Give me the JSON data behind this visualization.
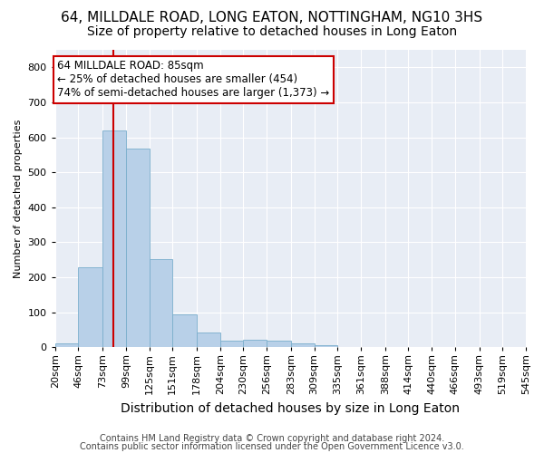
{
  "title": "64, MILLDALE ROAD, LONG EATON, NOTTINGHAM, NG10 3HS",
  "subtitle": "Size of property relative to detached houses in Long Eaton",
  "xlabel": "Distribution of detached houses by size in Long Eaton",
  "ylabel": "Number of detached properties",
  "footnote1": "Contains HM Land Registry data © Crown copyright and database right 2024.",
  "footnote2": "Contains public sector information licensed under the Open Government Licence v3.0.",
  "annotation_line1": "64 MILLDALE ROAD: 85sqm",
  "annotation_line2": "← 25% of detached houses are smaller (454)",
  "annotation_line3": "74% of semi-detached houses are larger (1,373) →",
  "bar_edges": [
    20,
    46,
    73,
    99,
    125,
    151,
    178,
    204,
    230,
    256,
    283,
    309,
    335,
    361,
    388,
    414,
    440,
    466,
    493,
    519,
    545
  ],
  "bar_values": [
    10,
    228,
    620,
    568,
    253,
    95,
    43,
    19,
    20,
    19,
    10,
    6,
    0,
    0,
    0,
    0,
    0,
    0,
    0,
    0
  ],
  "bar_color": "#b8d0e8",
  "bar_edge_color": "#7aaecc",
  "vline_color": "#cc0000",
  "vline_x": 85,
  "ylim": [
    0,
    850
  ],
  "yticks": [
    0,
    100,
    200,
    300,
    400,
    500,
    600,
    700,
    800
  ],
  "background_color": "#e8edf5",
  "grid_color": "#ffffff",
  "fig_background": "#ffffff",
  "annotation_box_color": "#ffffff",
  "annotation_box_edge": "#cc0000",
  "title_fontsize": 11,
  "subtitle_fontsize": 10,
  "xlabel_fontsize": 10,
  "ylabel_fontsize": 8,
  "tick_fontsize": 8,
  "annotation_fontsize": 8.5,
  "footnote_fontsize": 7
}
